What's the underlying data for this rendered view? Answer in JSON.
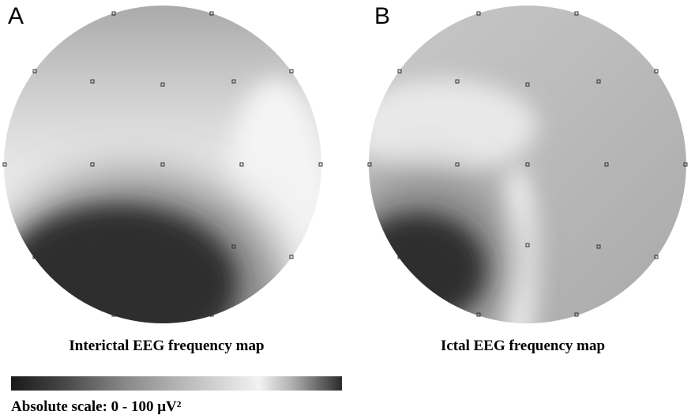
{
  "panels": [
    {
      "label": "A",
      "caption": "Interictal EEG frequency map"
    },
    {
      "label": "B",
      "caption": "Ictal EEG frequency map"
    }
  ],
  "scale": {
    "label": "Absolute scale: 0 - 100 μV²"
  }
}
